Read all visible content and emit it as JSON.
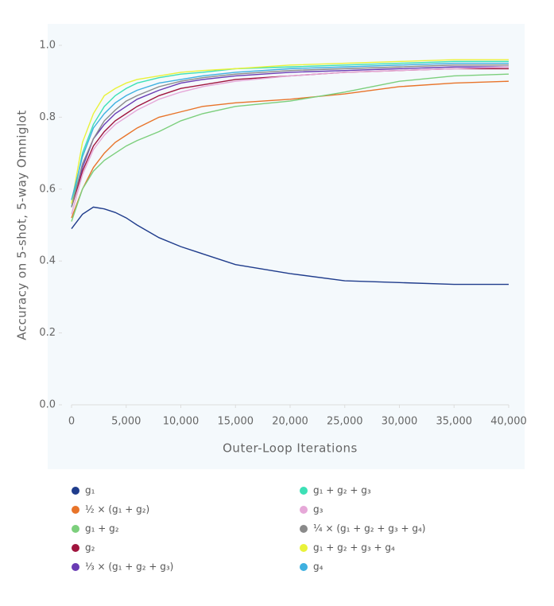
{
  "chart_data": {
    "type": "line",
    "x_label": "Outer-Loop Iterations",
    "y_label": "Accuracy on 5-shot, 5-way Omniglot",
    "x": [
      0,
      1000,
      2000,
      3000,
      4000,
      5000,
      6000,
      8000,
      10000,
      12000,
      15000,
      20000,
      25000,
      30000,
      35000,
      40000
    ],
    "xlim": [
      0,
      40000
    ],
    "xticks": [
      0,
      {
        "value": 5000,
        "label": "5,000"
      },
      {
        "value": 10000,
        "label": "10,000"
      },
      {
        "value": 15000,
        "label": "15,000"
      },
      {
        "value": 20000,
        "label": "20,000"
      },
      {
        "value": 25000,
        "label": "25,000"
      },
      {
        "value": 30000,
        "label": "30,000"
      },
      {
        "value": 35000,
        "label": "35,000"
      },
      {
        "value": 40000,
        "label": "40,000"
      }
    ],
    "ylim": [
      0,
      1.0
    ],
    "yticks": [
      {
        "value": 0,
        "label": "0.0"
      },
      0.2,
      0.4,
      0.6,
      0.8,
      {
        "value": 1.0,
        "label": "1.0"
      }
    ],
    "grid": false,
    "series": [
      {
        "name": "g₁",
        "color": "#1f3c8c",
        "values": [
          0.49,
          0.53,
          0.55,
          0.545,
          0.535,
          0.52,
          0.5,
          0.465,
          0.44,
          0.42,
          0.39,
          0.365,
          0.345,
          0.34,
          0.335,
          0.335
        ]
      },
      {
        "name": "½ × (g₁ + g₂)",
        "color": "#e8742a",
        "values": [
          0.52,
          0.6,
          0.66,
          0.7,
          0.73,
          0.75,
          0.77,
          0.8,
          0.815,
          0.83,
          0.84,
          0.85,
          0.865,
          0.885,
          0.895,
          0.9
        ]
      },
      {
        "name": "g₁ + g₂",
        "color": "#7ccf7c",
        "values": [
          0.51,
          0.6,
          0.65,
          0.68,
          0.7,
          0.72,
          0.735,
          0.76,
          0.79,
          0.81,
          0.83,
          0.845,
          0.87,
          0.9,
          0.915,
          0.92
        ]
      },
      {
        "name": "g₂",
        "color": "#a0153e",
        "values": [
          0.55,
          0.65,
          0.72,
          0.76,
          0.79,
          0.81,
          0.83,
          0.86,
          0.88,
          0.89,
          0.905,
          0.915,
          0.925,
          0.93,
          0.935,
          0.935
        ]
      },
      {
        "name": "⅓ × (g₁ + g₂ + g₃)",
        "color": "#6a3cb4",
        "values": [
          0.56,
          0.66,
          0.74,
          0.78,
          0.81,
          0.83,
          0.85,
          0.875,
          0.895,
          0.905,
          0.915,
          0.925,
          0.93,
          0.935,
          0.94,
          0.94
        ]
      },
      {
        "name": "g₁ + g₂ + g₃",
        "color": "#3de0b6",
        "values": [
          0.55,
          0.7,
          0.78,
          0.83,
          0.86,
          0.88,
          0.895,
          0.91,
          0.92,
          0.925,
          0.935,
          0.94,
          0.945,
          0.95,
          0.955,
          0.955
        ]
      },
      {
        "name": "g₃",
        "color": "#e6a8d8",
        "values": [
          0.53,
          0.64,
          0.71,
          0.75,
          0.78,
          0.8,
          0.82,
          0.85,
          0.87,
          0.885,
          0.9,
          0.915,
          0.925,
          0.93,
          0.935,
          0.94
        ]
      },
      {
        "name": "¼ × (g₁ + g₂ + g₃ + g₄)",
        "color": "#8a8a8a",
        "values": [
          0.55,
          0.67,
          0.74,
          0.79,
          0.82,
          0.845,
          0.86,
          0.885,
          0.9,
          0.91,
          0.92,
          0.93,
          0.935,
          0.94,
          0.945,
          0.945
        ]
      },
      {
        "name": "g₁ + g₂ + g₃ + g₄",
        "color": "#e9f23a",
        "values": [
          0.56,
          0.73,
          0.81,
          0.86,
          0.88,
          0.895,
          0.905,
          0.915,
          0.925,
          0.93,
          0.935,
          0.945,
          0.95,
          0.955,
          0.96,
          0.96
        ]
      },
      {
        "name": "g₄",
        "color": "#3fb0e0",
        "values": [
          0.57,
          0.69,
          0.77,
          0.81,
          0.84,
          0.86,
          0.875,
          0.895,
          0.905,
          0.915,
          0.925,
          0.935,
          0.94,
          0.945,
          0.95,
          0.95
        ]
      }
    ]
  }
}
